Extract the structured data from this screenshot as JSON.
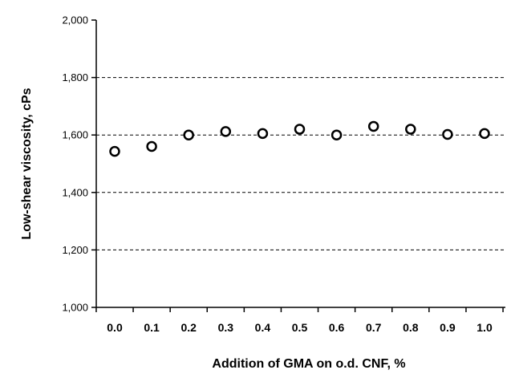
{
  "chart_data": {
    "type": "scatter",
    "xlabel": "Addition of GMA on o.d. CNF, %",
    "ylabel": "Low-shear viscosity, cPs",
    "ylim": [
      1000,
      2000
    ],
    "yticks": [
      1000,
      1200,
      1400,
      1600,
      1800,
      2000
    ],
    "ytick_labels": [
      "1,000",
      "1,200",
      "1,400",
      "1,600",
      "1,800",
      "2,000"
    ],
    "x_categories": [
      "0.0",
      "0.1",
      "0.2",
      "0.3",
      "0.4",
      "0.5",
      "0.6",
      "0.7",
      "0.8",
      "0.9",
      "1.0"
    ],
    "grid": "horizontal-dashed",
    "legend": "none",
    "series": [
      {
        "x": [
          0.0,
          0.1,
          0.2,
          0.3,
          0.4,
          0.5,
          0.6,
          0.7,
          0.8,
          0.9,
          1.0
        ],
        "y": [
          1543,
          1560,
          1600,
          1612,
          1605,
          1620,
          1600,
          1630,
          1620,
          1602,
          1605
        ]
      }
    ]
  }
}
